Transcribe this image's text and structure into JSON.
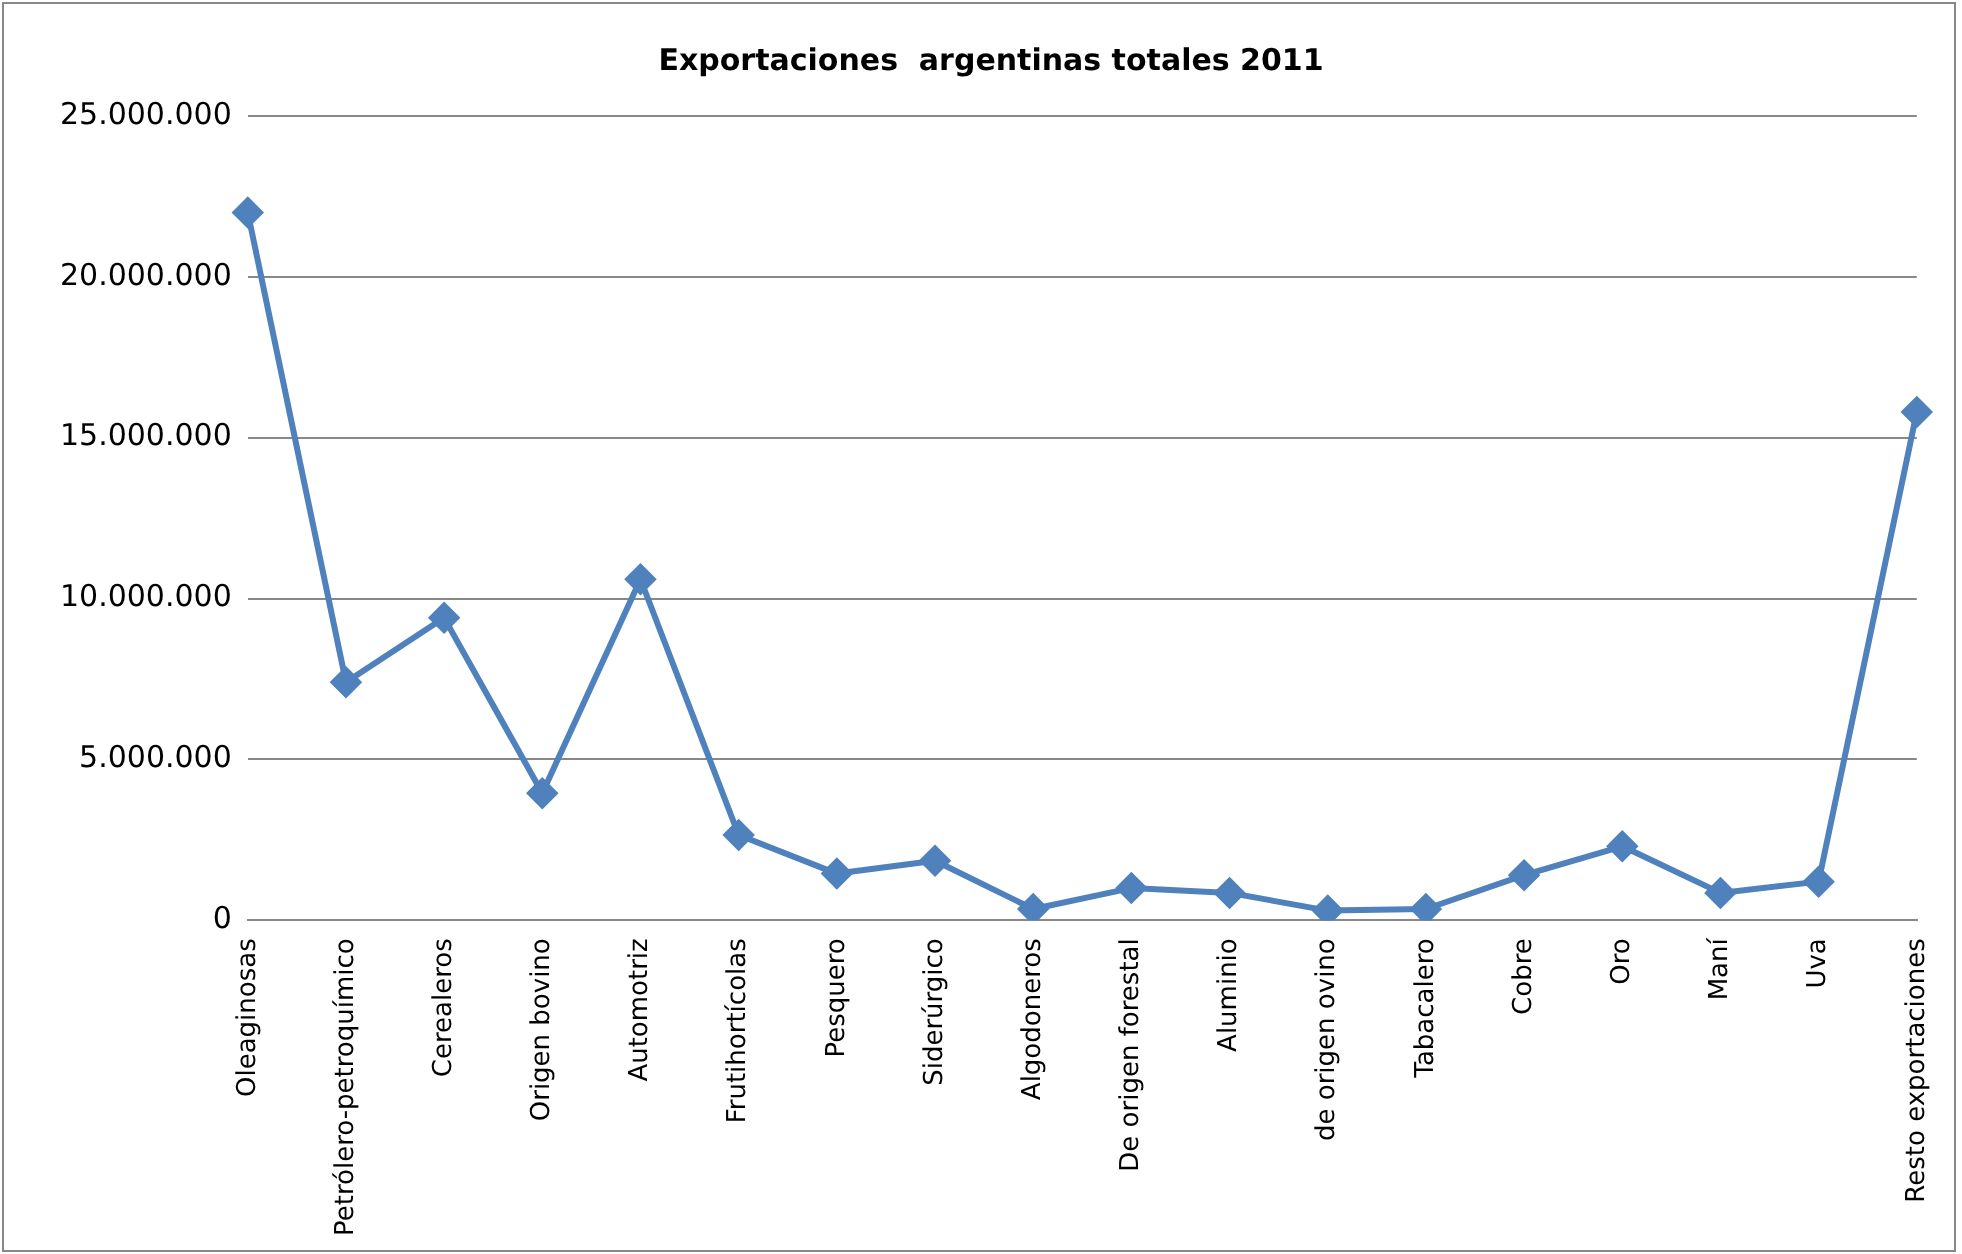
{
  "chart_data": {
    "type": "line",
    "title": "Exportaciones  argentinas totales 2011",
    "categories": [
      "Oleaginosas",
      "Petrólero-petroquímico",
      "Cerealeros",
      "Origen bovino",
      "Automotriz",
      "Frutihortícolas",
      "Pesquero",
      "Siderúrgico",
      "Algodoneros",
      "De origen forestal",
      "Aluminio",
      "de origen ovino",
      "Tabacalero",
      "Cobre",
      "Oro",
      "Maní",
      "Uva",
      "Resto exportaciones"
    ],
    "series": [
      {
        "color": "#4f81bd",
        "values": [
          22000000,
          7400000,
          9400000,
          3950000,
          10600000,
          2650000,
          1450000,
          1850000,
          350000,
          1000000,
          850000,
          300000,
          350000,
          1400000,
          2300000,
          850000,
          1200000,
          15800000
        ]
      }
    ],
    "ylim": [
      0,
      25000000
    ],
    "yticks": [
      {
        "value": 0,
        "label": "0"
      },
      {
        "value": 5000000,
        "label": "5.000.000"
      },
      {
        "value": 10000000,
        "label": "10.000.000"
      },
      {
        "value": 15000000,
        "label": "15.000.000"
      },
      {
        "value": 20000000,
        "label": "20.000.000"
      },
      {
        "value": 25000000,
        "label": "25.000.000"
      }
    ],
    "grid": "y",
    "legend": false,
    "marker": "diamond",
    "line_style": "solid"
  }
}
